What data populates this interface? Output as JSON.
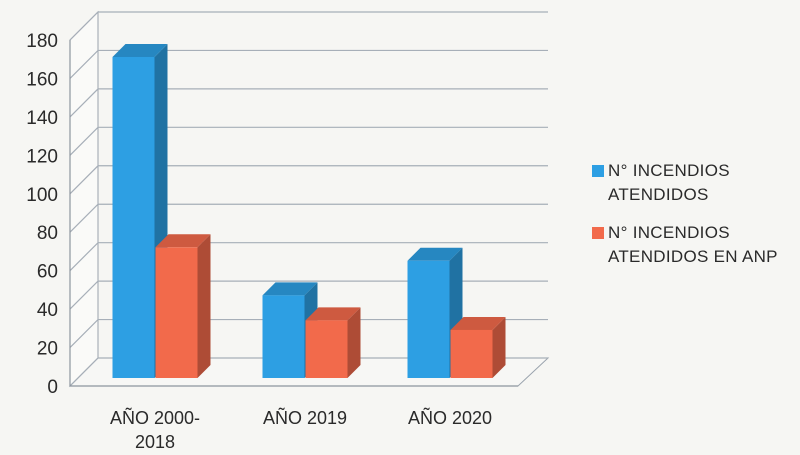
{
  "chart_data": {
    "type": "bar",
    "categories": [
      [
        "AÑO 2000-",
        "2018"
      ],
      [
        "AÑO 2019"
      ],
      [
        "AÑO 2020"
      ]
    ],
    "series": [
      {
        "name": "N° INCENDIOS ATENDIDOS",
        "legend_lines": [
          "N° INCENDIOS",
          "ATENDIDOS"
        ],
        "color": "#2d9fe3",
        "values": [
          167,
          43,
          61
        ]
      },
      {
        "name": "N° INCENDIOS ATENDIDOS EN ANP",
        "legend_lines": [
          "N° INCENDIOS",
          "ATENDIDOS EN ANP"
        ],
        "color": "#f26a4b",
        "values": [
          68,
          30,
          25
        ]
      }
    ],
    "yticks": [
      0,
      20,
      40,
      60,
      80,
      100,
      120,
      140,
      160,
      180
    ],
    "ylim": [
      0,
      180
    ],
    "grid": true,
    "legend_position": "right",
    "title": "",
    "xlabel": "",
    "ylabel": ""
  }
}
